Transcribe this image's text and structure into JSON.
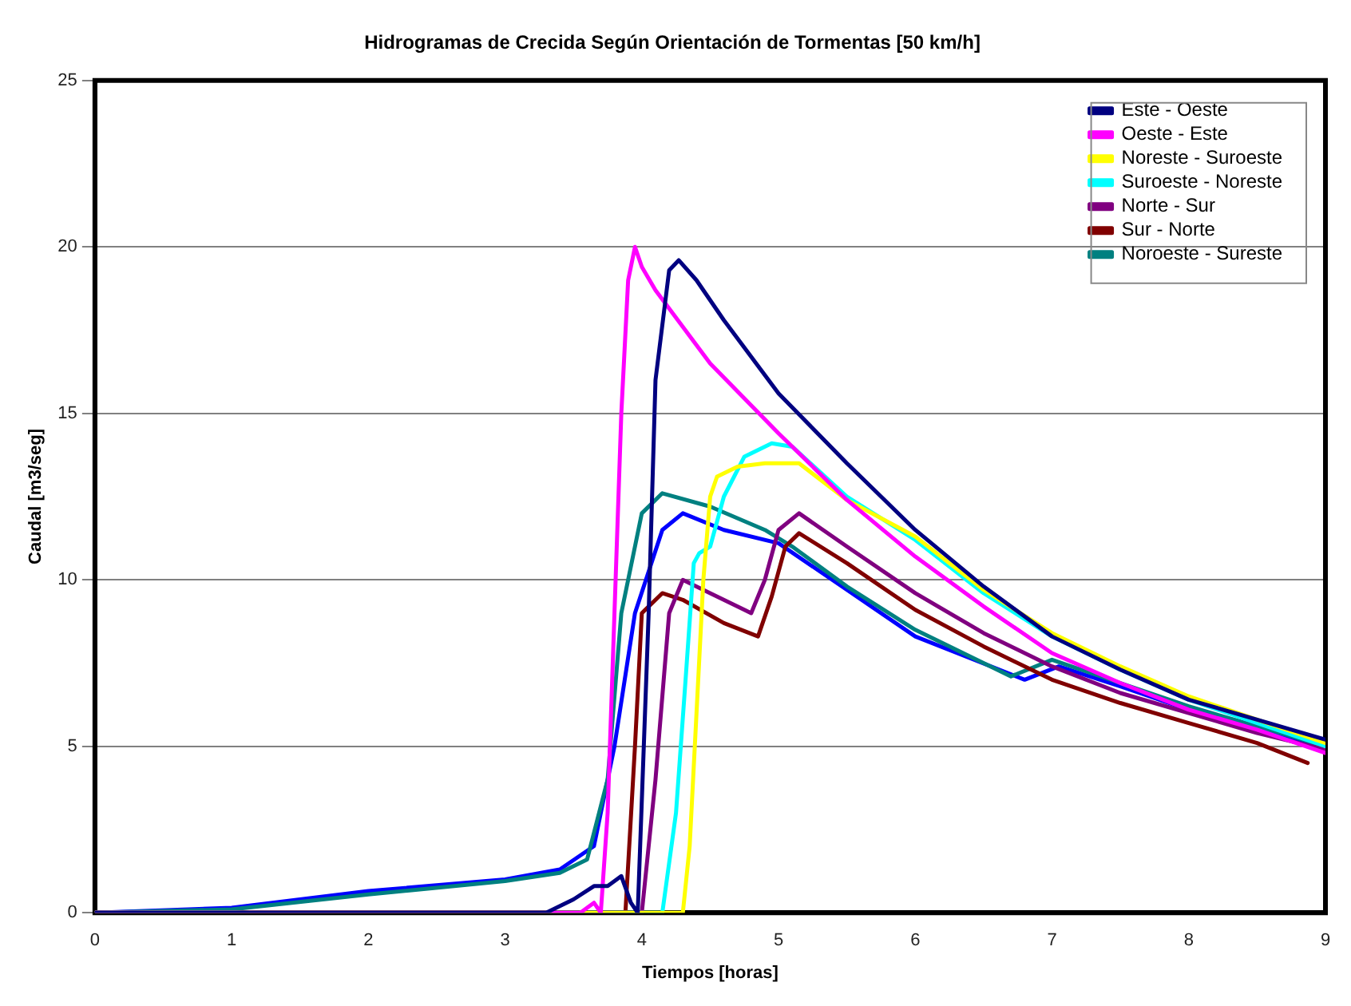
{
  "chart_data": {
    "type": "line",
    "title": "Hidrogramas de Crecida Según Orientación de Tormentas [50 km/h]",
    "xlabel": "Tiempos [horas]",
    "ylabel": "Caudal [m3/seg]",
    "xlim": [
      0,
      9
    ],
    "xticks": [
      0,
      1,
      2,
      3,
      4,
      5,
      6,
      7,
      8,
      9
    ],
    "ylim": [
      0,
      25
    ],
    "yticks": [
      0,
      5,
      10,
      15,
      20,
      25
    ],
    "grid": "y",
    "legend": "top right",
    "marker": "none",
    "line_style": "solid",
    "series": [
      {
        "name": "Este - Oeste",
        "color": "#000080",
        "x": [
          0,
          3.3,
          3.5,
          3.65,
          3.75,
          3.85,
          3.92,
          3.97,
          4.05,
          4.1,
          4.2,
          4.27,
          4.4,
          4.6,
          5,
          5.5,
          6,
          6.5,
          7,
          7.5,
          8,
          8.5,
          9
        ],
        "values": [
          0,
          0,
          0.4,
          0.8,
          0.8,
          1.1,
          0.3,
          0,
          9,
          16,
          19.3,
          19.6,
          19,
          17.8,
          15.6,
          13.5,
          11.5,
          9.8,
          8.3,
          7.3,
          6.4,
          5.8,
          5.2
        ]
      },
      {
        "name": "Oeste - Este",
        "color": "#ff00ff",
        "x": [
          0,
          3.55,
          3.65,
          3.7,
          3.75,
          3.8,
          3.85,
          3.9,
          3.95,
          4.0,
          4.1,
          4.5,
          5,
          5.5,
          6,
          6.5,
          7,
          7.5,
          8,
          8.5,
          9
        ],
        "values": [
          0,
          0,
          0.3,
          0,
          3,
          9,
          15,
          19,
          20,
          19.4,
          18.7,
          16.5,
          14.4,
          12.4,
          10.7,
          9.2,
          7.8,
          6.9,
          6.1,
          5.5,
          4.8
        ]
      },
      {
        "name": "Noreste - Suroeste",
        "color": "#ffff00",
        "x": [
          0,
          4.3,
          4.35,
          4.4,
          4.45,
          4.5,
          4.55,
          4.7,
          4.9,
          5.15,
          5.5,
          6,
          6.5,
          7,
          7.5,
          8,
          8.5,
          9
        ],
        "values": [
          0,
          0,
          2,
          6,
          10,
          12.5,
          13.1,
          13.4,
          13.5,
          13.5,
          12.4,
          11.3,
          9.7,
          8.4,
          7.4,
          6.5,
          5.8,
          5.1
        ]
      },
      {
        "name": "Suroeste - Noreste",
        "color": "#00ffff",
        "x": [
          0,
          4.15,
          4.25,
          4.32,
          4.38,
          4.42,
          4.5,
          4.6,
          4.75,
          4.95,
          5.1,
          5.5,
          6,
          6.5,
          7,
          7.5,
          8,
          8.5,
          9
        ],
        "values": [
          0,
          0,
          3,
          7,
          10.5,
          10.8,
          11,
          12.5,
          13.7,
          14.1,
          14,
          12.5,
          11.2,
          9.6,
          8.3,
          7.3,
          6.4,
          5.7,
          5
        ]
      },
      {
        "name": "Norte - Sur",
        "color": "#800080",
        "x": [
          0,
          4.0,
          4.1,
          4.2,
          4.3,
          4.5,
          4.8,
          4.9,
          5.0,
          5.15,
          5.5,
          6,
          6.5,
          7,
          7.5,
          8,
          8.5,
          9
        ],
        "values": [
          0,
          0,
          4,
          9,
          10,
          9.6,
          9,
          10,
          11.5,
          12,
          11,
          9.6,
          8.4,
          7.4,
          6.6,
          6,
          5.4,
          4.9
        ]
      },
      {
        "name": "Sur - Norte",
        "color": "#800000",
        "x": [
          0,
          3.88,
          3.95,
          4.0,
          4.15,
          4.3,
          4.6,
          4.85,
          4.95,
          5.05,
          5.15,
          5.5,
          6,
          6.5,
          7,
          7.5,
          8,
          8.5,
          8.87
        ],
        "values": [
          0,
          0,
          5,
          9,
          9.6,
          9.4,
          8.7,
          8.3,
          9.5,
          11,
          11.4,
          10.5,
          9.1,
          8,
          7,
          6.3,
          5.7,
          5.1,
          4.5
        ]
      },
      {
        "name": "Noroeste - Sureste",
        "color": "#008080",
        "x": [
          0,
          1,
          2,
          3,
          3.4,
          3.6,
          3.75,
          3.85,
          4.0,
          4.15,
          4.5,
          4.9,
          5.1,
          5.5,
          6,
          6.7,
          7,
          7.5,
          8,
          8.5,
          9
        ],
        "values": [
          0,
          0.1,
          0.55,
          0.95,
          1.2,
          1.6,
          4,
          9,
          12,
          12.6,
          12.2,
          11.5,
          11,
          9.8,
          8.5,
          7.1,
          7.6,
          6.9,
          6.2,
          5.6,
          5
        ]
      },
      {
        "color": "#0000ff",
        "x": [
          0,
          1,
          2,
          3,
          3.4,
          3.65,
          3.8,
          3.95,
          4.15,
          4.3,
          4.6,
          5,
          5.5,
          6,
          6.8,
          7.05,
          7.5,
          8,
          8.5,
          9
        ],
        "values": [
          0,
          0.15,
          0.65,
          1,
          1.3,
          2,
          5,
          9,
          11.5,
          12,
          11.5,
          11.1,
          9.7,
          8.3,
          7,
          7.4,
          6.8,
          6.1,
          5.5,
          4.9
        ]
      }
    ]
  }
}
